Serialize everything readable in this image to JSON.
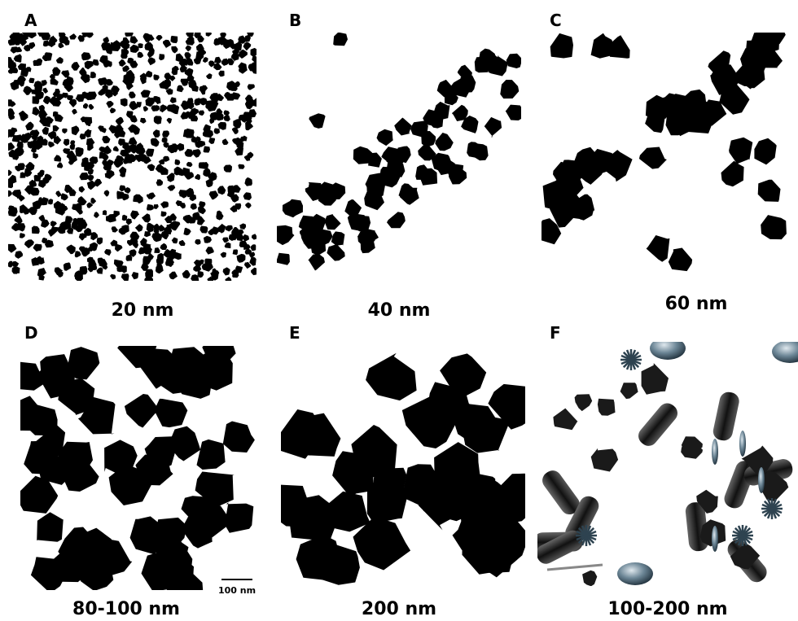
{
  "panels": [
    {
      "label": "A",
      "caption": "20 nm"
    },
    {
      "label": "B",
      "caption": "40 nm"
    },
    {
      "label": "C",
      "caption": "60 nm"
    },
    {
      "label": "D",
      "caption": "80-100 nm",
      "scale_bar": "100 nm"
    },
    {
      "label": "E",
      "caption": "200 nm"
    },
    {
      "label": "F",
      "caption": "100-200 nm"
    }
  ]
}
